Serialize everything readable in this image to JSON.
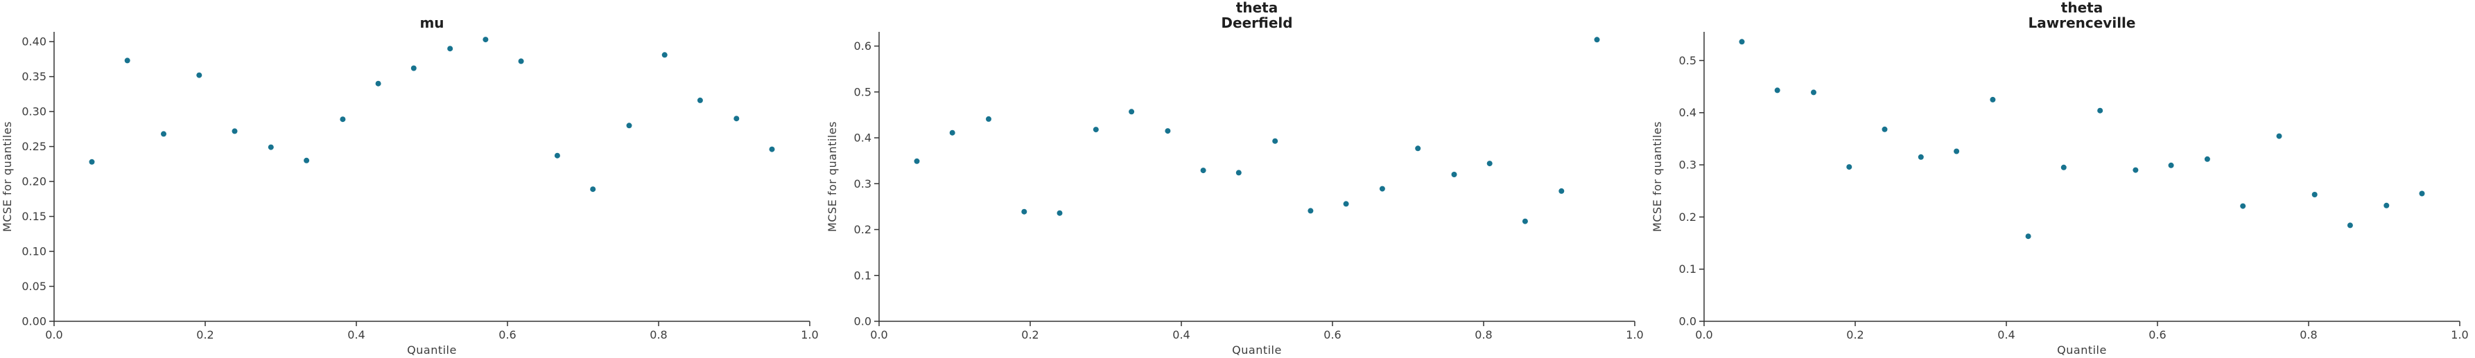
{
  "figure": {
    "background": "#ffffff",
    "point_color": "#17738f",
    "axis_color": "#333333",
    "text_color": "#3d3d3d",
    "title_color": "#1f1f1f"
  },
  "chart_data": [
    {
      "type": "scatter",
      "title_lines": [
        "mu"
      ],
      "xlabel": "Quantile",
      "ylabel": "MCSE for quantiles",
      "xlim": [
        0.0,
        1.0
      ],
      "ylim": [
        0.0,
        0.414
      ],
      "xticks": [
        0.0,
        0.2,
        0.4,
        0.6,
        0.8,
        1.0
      ],
      "xtick_labels": [
        "0.0",
        "0.2",
        "0.4",
        "0.6",
        "0.8",
        "1.0"
      ],
      "yticks": [
        0.0,
        0.05,
        0.1,
        0.15,
        0.2,
        0.25,
        0.3,
        0.35,
        0.4
      ],
      "ytick_labels": [
        "0.00",
        "0.05",
        "0.10",
        "0.15",
        "0.20",
        "0.25",
        "0.30",
        "0.35",
        "0.40"
      ],
      "grid": false,
      "legend": null,
      "x": [
        0.05,
        0.097,
        0.145,
        0.192,
        0.239,
        0.287,
        0.334,
        0.382,
        0.429,
        0.476,
        0.524,
        0.571,
        0.618,
        0.666,
        0.713,
        0.761,
        0.808,
        0.855,
        0.903,
        0.95
      ],
      "y": [
        0.228,
        0.373,
        0.268,
        0.352,
        0.272,
        0.249,
        0.23,
        0.289,
        0.34,
        0.362,
        0.39,
        0.403,
        0.372,
        0.237,
        0.189,
        0.28,
        0.381,
        0.316,
        0.29,
        0.246
      ]
    },
    {
      "type": "scatter",
      "title_lines": [
        "theta",
        "Deerfield"
      ],
      "xlabel": "Quantile",
      "ylabel": "MCSE for quantiles",
      "xlim": [
        0.0,
        1.0
      ],
      "ylim": [
        0.0,
        0.631
      ],
      "xticks": [
        0.0,
        0.2,
        0.4,
        0.6,
        0.8,
        1.0
      ],
      "xtick_labels": [
        "0.0",
        "0.2",
        "0.4",
        "0.6",
        "0.8",
        "1.0"
      ],
      "yticks": [
        0.0,
        0.1,
        0.2,
        0.3,
        0.4,
        0.5,
        0.6
      ],
      "ytick_labels": [
        "0.0",
        "0.1",
        "0.2",
        "0.3",
        "0.4",
        "0.5",
        "0.6"
      ],
      "grid": false,
      "legend": null,
      "x": [
        0.05,
        0.097,
        0.145,
        0.192,
        0.239,
        0.287,
        0.334,
        0.382,
        0.429,
        0.476,
        0.524,
        0.571,
        0.618,
        0.666,
        0.713,
        0.761,
        0.808,
        0.855,
        0.903,
        0.95
      ],
      "y": [
        0.349,
        0.411,
        0.441,
        0.239,
        0.236,
        0.418,
        0.457,
        0.415,
        0.329,
        0.324,
        0.393,
        0.241,
        0.256,
        0.289,
        0.377,
        0.32,
        0.344,
        0.218,
        0.284,
        0.614
      ]
    },
    {
      "type": "scatter",
      "title_lines": [
        "theta",
        "Lawrenceville"
      ],
      "xlabel": "Quantile",
      "ylabel": "MCSE for quantiles",
      "xlim": [
        0.0,
        1.0
      ],
      "ylim": [
        0.0,
        0.555
      ],
      "xticks": [
        0.0,
        0.2,
        0.4,
        0.6,
        0.8,
        1.0
      ],
      "xtick_labels": [
        "0.0",
        "0.2",
        "0.4",
        "0.6",
        "0.8",
        "1.0"
      ],
      "yticks": [
        0.0,
        0.1,
        0.2,
        0.3,
        0.4,
        0.5
      ],
      "ytick_labels": [
        "0.0",
        "0.1",
        "0.2",
        "0.3",
        "0.4",
        "0.5"
      ],
      "grid": false,
      "legend": null,
      "x": [
        0.05,
        0.097,
        0.145,
        0.192,
        0.239,
        0.287,
        0.334,
        0.382,
        0.429,
        0.476,
        0.524,
        0.571,
        0.618,
        0.666,
        0.713,
        0.761,
        0.808,
        0.855,
        0.903,
        0.95
      ],
      "y": [
        0.536,
        0.443,
        0.439,
        0.296,
        0.368,
        0.315,
        0.326,
        0.425,
        0.163,
        0.295,
        0.404,
        0.29,
        0.299,
        0.311,
        0.221,
        0.355,
        0.243,
        0.184,
        0.222,
        0.245
      ]
    }
  ]
}
